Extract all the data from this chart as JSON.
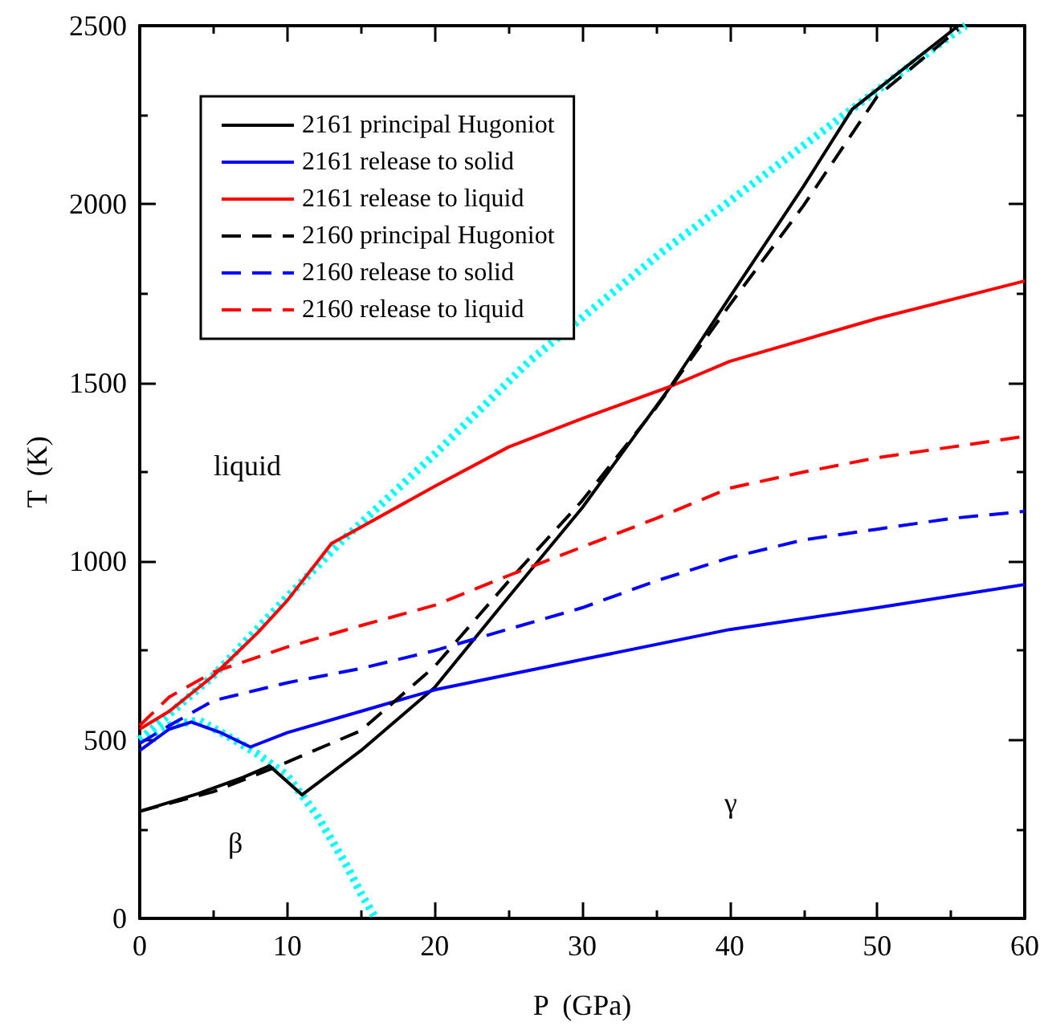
{
  "chart_data": {
    "type": "line",
    "xlabel": "P  (GPa)",
    "ylabel": "T  (K)",
    "xlim": [
      0,
      60
    ],
    "ylim": [
      0,
      2500
    ],
    "xticks": [
      0,
      10,
      20,
      30,
      40,
      50,
      60
    ],
    "yticks": [
      0,
      500,
      1000,
      1500,
      2000,
      2500
    ],
    "grid": false,
    "legend": "top left",
    "marker": "none",
    "series": [
      {
        "name": "2161 principal Hugoniot",
        "color": "#000000",
        "line_style": "solid",
        "x": [
          0,
          4,
          7,
          8.8,
          11,
          15,
          20,
          25,
          30,
          36,
          40,
          45,
          48.3,
          55.5
        ],
        "values": [
          300,
          350,
          395,
          427,
          346,
          470,
          647,
          900,
          1150,
          1490,
          1740,
          2050,
          2266,
          2500
        ]
      },
      {
        "name": "2161 release to solid",
        "color": "#0000ff",
        "line_style": "solid",
        "x": [
          0,
          2,
          3.5,
          5.5,
          7.5,
          10,
          15,
          20,
          30,
          40,
          50,
          60
        ],
        "values": [
          470,
          530,
          550,
          520,
          480,
          520,
          580,
          640,
          725,
          809,
          870,
          935
        ]
      },
      {
        "name": "2161 release to liquid",
        "color": "#ff0000",
        "line_style": "solid",
        "x": [
          0,
          2,
          5,
          8,
          10,
          13,
          20,
          25,
          30,
          36,
          40,
          50,
          60
        ],
        "values": [
          530,
          580,
          680,
          800,
          890,
          1050,
          1210,
          1320,
          1400,
          1490,
          1560,
          1680,
          1785
        ]
      },
      {
        "name": "2160 principal Hugoniot",
        "color": "#000000",
        "line_style": "dashed",
        "x": [
          0,
          5,
          9,
          15,
          20,
          25,
          30,
          35,
          40,
          45,
          50,
          55.5
        ],
        "values": [
          300,
          355,
          420,
          526,
          706,
          944,
          1170,
          1430,
          1718,
          1996,
          2302,
          2490
        ]
      },
      {
        "name": "2160 release to solid",
        "color": "#0000ff",
        "line_style": "dashed",
        "x": [
          0,
          2,
          5,
          10,
          15,
          20,
          25,
          30,
          35,
          40,
          45,
          50,
          55,
          60
        ],
        "values": [
          490,
          540,
          610,
          660,
          700,
          750,
          810,
          870,
          945,
          1010,
          1060,
          1090,
          1120,
          1140
        ]
      },
      {
        "name": "2160 release to liquid",
        "color": "#ff0000",
        "line_style": "dashed",
        "x": [
          0,
          2,
          5,
          10,
          15,
          20,
          25,
          30,
          35,
          40,
          45,
          50,
          55,
          60
        ],
        "values": [
          540,
          620,
          690,
          760,
          820,
          877,
          960,
          1040,
          1120,
          1205,
          1250,
          1290,
          1320,
          1350
        ]
      },
      {
        "color": "#00ffff",
        "line_style": "dotted",
        "x": [
          0,
          5,
          10,
          13.7,
          20,
          26.4,
          35.4,
          47.7,
          55.3,
          56
        ],
        "values": [
          500,
          680,
          900,
          1057,
          1300,
          1560,
          1866,
          2248,
          2482,
          2500
        ]
      },
      {
        "color": "#00ffff",
        "line_style": "dotted",
        "x": [
          0,
          2,
          4,
          6,
          8,
          10,
          11,
          12,
          13,
          14,
          15,
          16
        ],
        "values": [
          500,
          540,
          555,
          510,
          460,
          400,
          345,
          290,
          220,
          150,
          70,
          0
        ]
      }
    ],
    "annotations": [
      "liquid",
      "β",
      "γ"
    ]
  }
}
